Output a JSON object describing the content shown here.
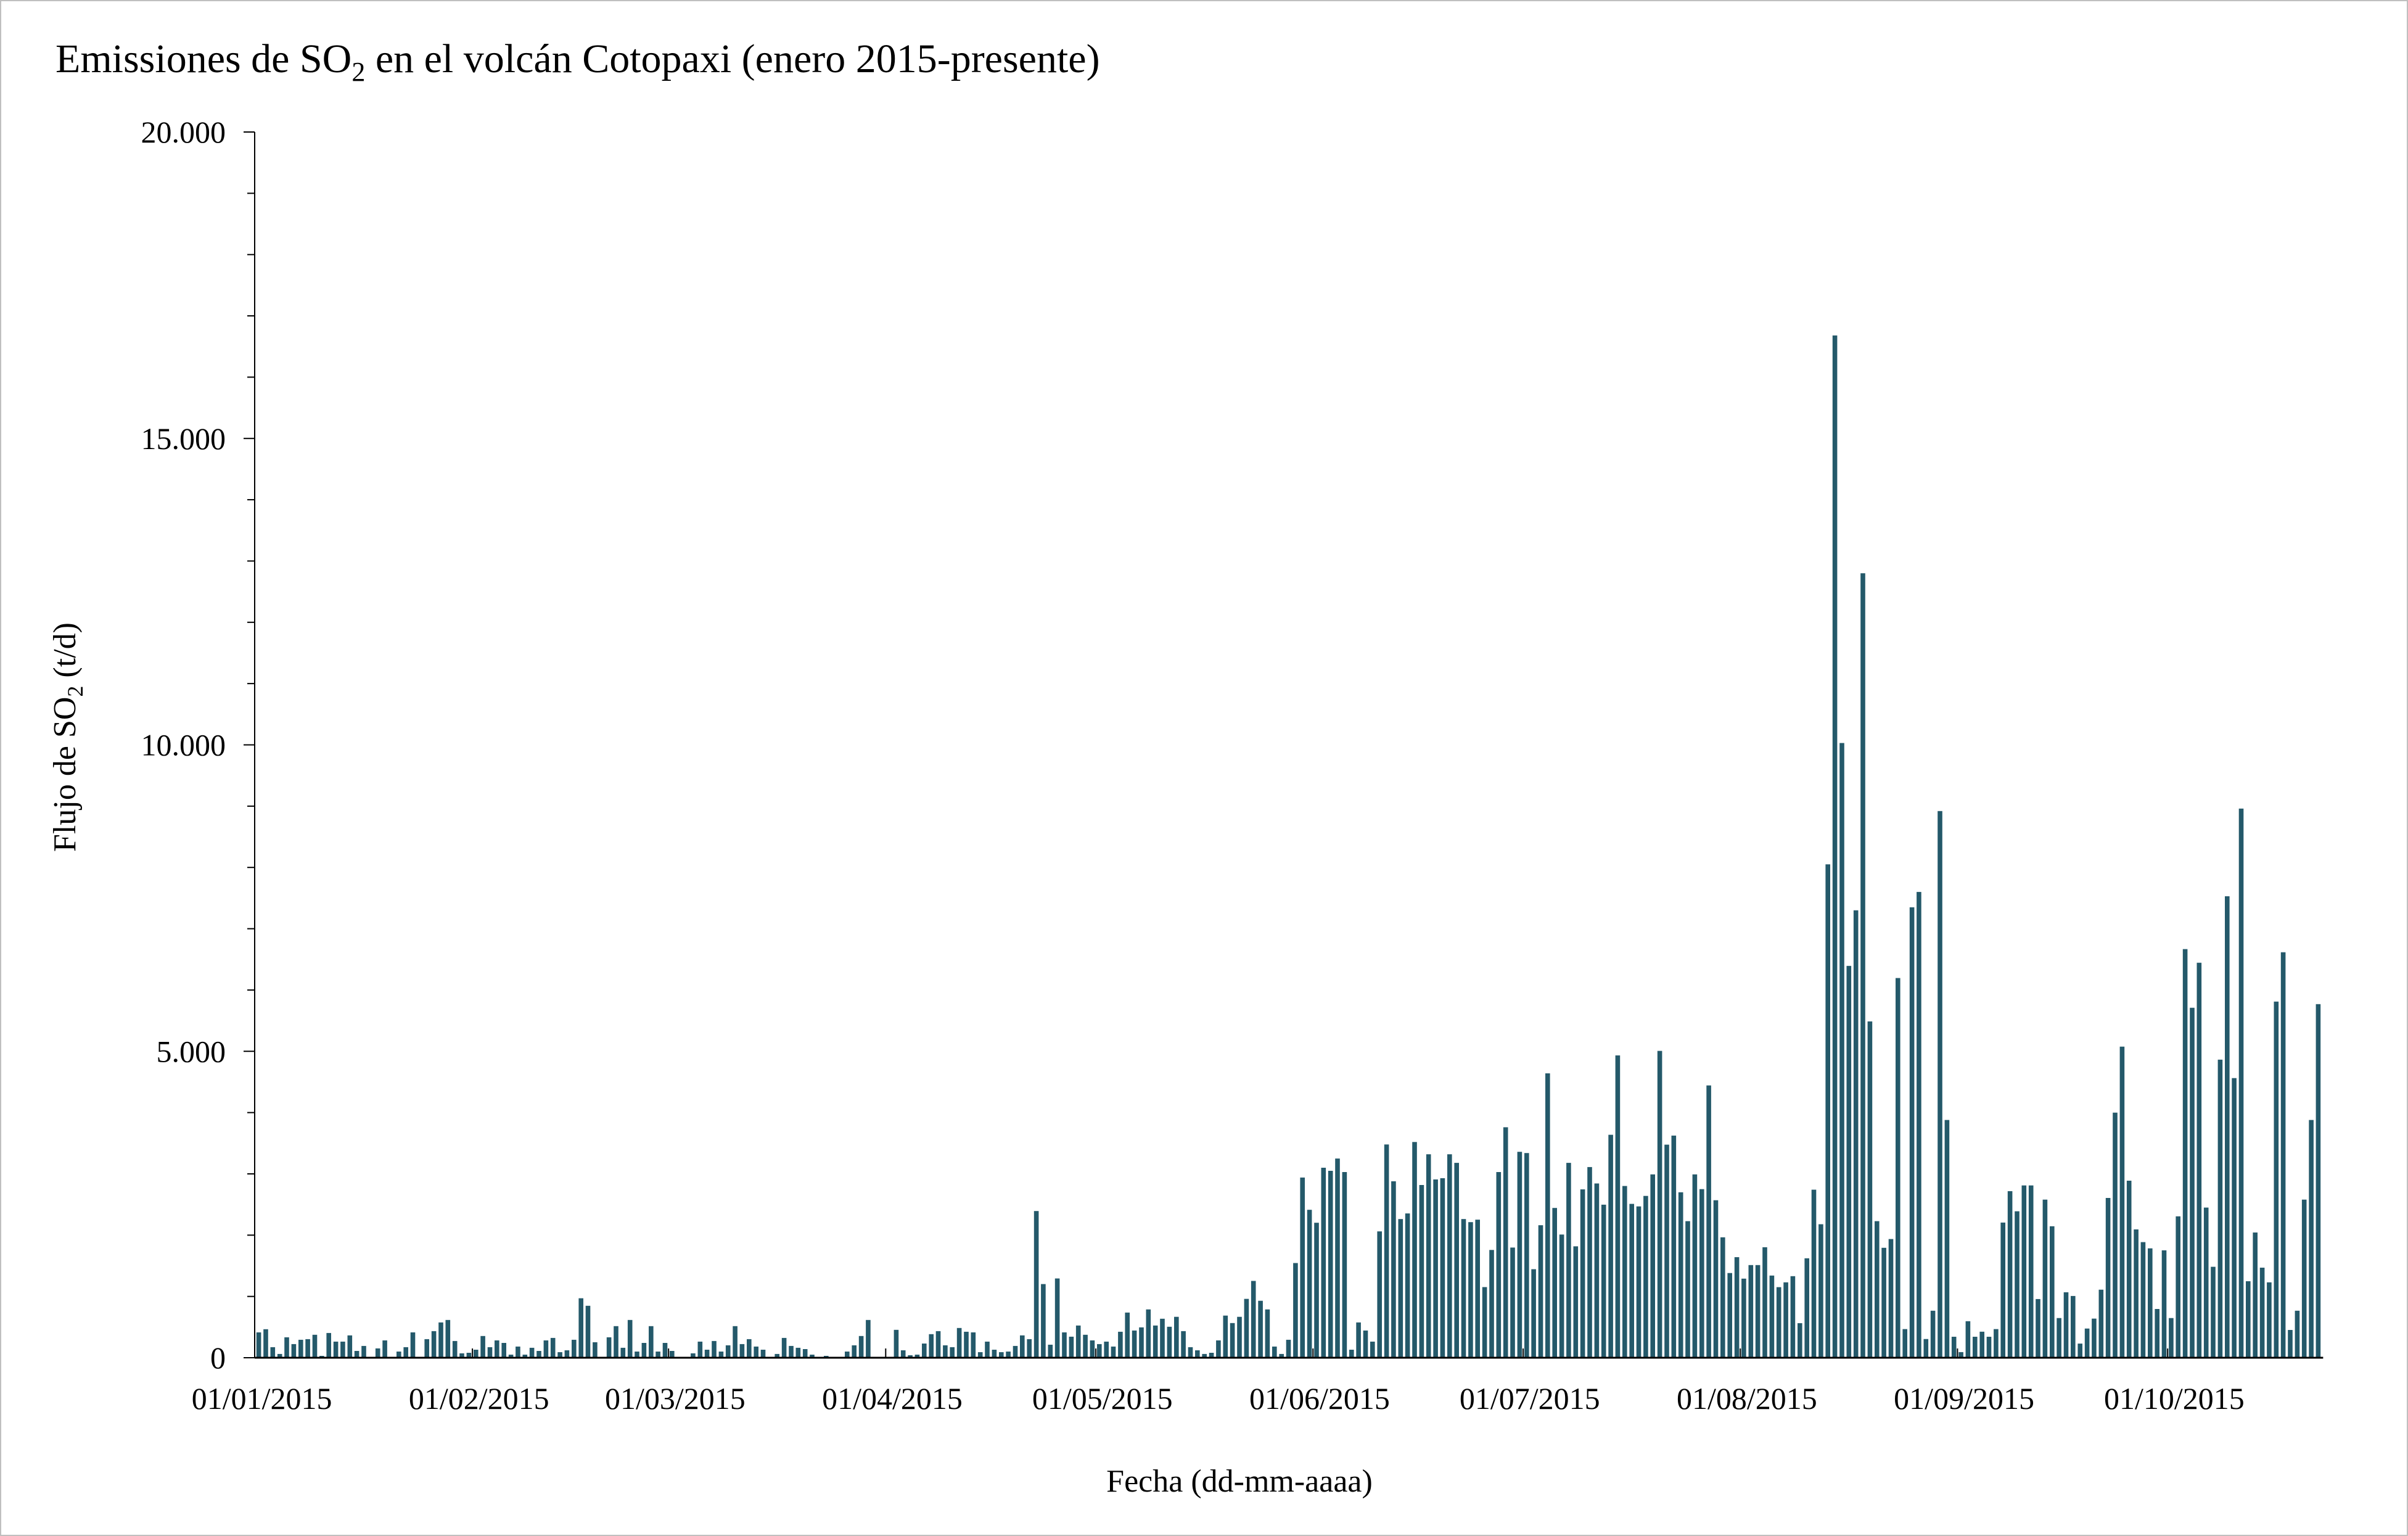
{
  "chart_data": {
    "type": "bar",
    "title": "Emissiones de SO",
    "title_sub": "2",
    "title_rest": " en el volcán Cotopaxi (enero 2015-presente)",
    "ylabel": "Flujo de SO",
    "ylabel_sub": "2",
    "ylabel_rest": " (t/d)",
    "xlabel": "Fecha (dd-mm-aaaa)",
    "ylim": [
      0,
      20000
    ],
    "y_major_ticks": [
      0,
      5000,
      10000,
      15000,
      20000
    ],
    "y_tick_labels": [
      "0",
      "5.000",
      "10.000",
      "15.000",
      "20.000"
    ],
    "y_minor_step": 1000,
    "x_tick_days": [
      0,
      31,
      59,
      90,
      120,
      151,
      181,
      212,
      243,
      273
    ],
    "x_tick_labels": [
      "01/01/2015",
      "01/02/2015",
      "01/03/2015",
      "01/04/2015",
      "01/05/2015",
      "01/06/2015",
      "01/07/2015",
      "01/08/2015",
      "01/09/2015",
      "01/10/2015"
    ],
    "x_unit": "days since 01/01/2015",
    "bar_color": "#24596a",
    "grid": false,
    "legend": "none",
    "values": [
      414,
      465,
      172,
      61,
      333,
      222,
      293,
      303,
      374,
      30,
      404,
      263,
      263,
      364,
      111,
      192,
      0,
      152,
      283,
      0,
      101,
      172,
      414,
      0,
      303,
      434,
      576,
      616,
      273,
      71,
      81,
      131,
      354,
      172,
      283,
      242,
      50,
      182,
      50,
      162,
      111,
      283,
      323,
      91,
      121,
      293,
      970,
      848,
      253,
      10,
      333,
      515,
      162,
      616,
      101,
      242,
      515,
      101,
      242,
      111,
      0,
      0,
      71,
      263,
      131,
      273,
      101,
      202,
      515,
      222,
      303,
      182,
      131,
      0,
      61,
      323,
      192,
      162,
      141,
      50,
      0,
      30,
      0,
      0,
      101,
      202,
      354,
      616,
      0,
      0,
      0,
      455,
      121,
      40,
      50,
      232,
      384,
      434,
      202,
      172,
      485,
      424,
      414,
      91,
      263,
      131,
      91,
      101,
      192,
      364,
      303,
      2394,
      1202,
      212,
      1293,
      414,
      343,
      525,
      374,
      283,
      222,
      263,
      182,
      424,
      737,
      444,
      495,
      788,
      525,
      636,
      505,
      667,
      434,
      172,
      121,
      61,
      81,
      283,
      687,
      566,
      667,
      960,
      1253,
      929,
      788,
      182,
      61,
      293,
      1545,
      2940,
      2414,
      2202,
      3100,
      3050,
      3250,
      3030,
      131,
      576,
      444,
      263,
      2061,
      3480,
      2879,
      2263,
      2354,
      3520,
      2818,
      3320,
      2909,
      2929,
      3320,
      3180,
      2263,
      2212,
      2253,
      1152,
      1758,
      3030,
      3760,
      1798,
      3360,
      3340,
      1444,
      2162,
      4640,
      2444,
      2010,
      3180,
      1818,
      2747,
      3111,
      2843,
      2497,
      3638,
      4933,
      2802,
      2510,
      2469,
      2640,
      2991,
      5007,
      3477,
      3625,
      2700,
      2228,
      2991,
      2751,
      4443,
      2570,
      1965,
      1382,
      1641,
      1290,
      1512,
      1512,
      1803,
      1341,
      1151,
      1230,
      1331,
      564,
      1623,
      2742,
      2178,
      8050,
      16680,
      10030,
      6394,
      7300,
      12800,
      5488,
      2228,
      1794,
      1937,
      6195,
      467,
      7350,
      7600,
      305,
      767,
      8920,
      3879,
      342,
      92,
      596,
      342,
      425,
      342,
      467,
      2205,
      2718,
      2390,
      2811,
      2811,
      957,
      2580,
      2145,
      647,
      1068,
      1008,
      231,
      476,
      638,
      1110,
      2607,
      3999,
      5076,
      2889,
      2094,
      1886,
      1785,
      795,
      1752,
      647,
      2307,
      6667,
      5710,
      6445,
      2450,
      1484,
      4864,
      7530,
      4563,
      8960,
      1248,
      2043,
      1470,
      1230,
      5811,
      6616,
      453,
      767,
      2580,
      3879,
      5770
    ]
  }
}
